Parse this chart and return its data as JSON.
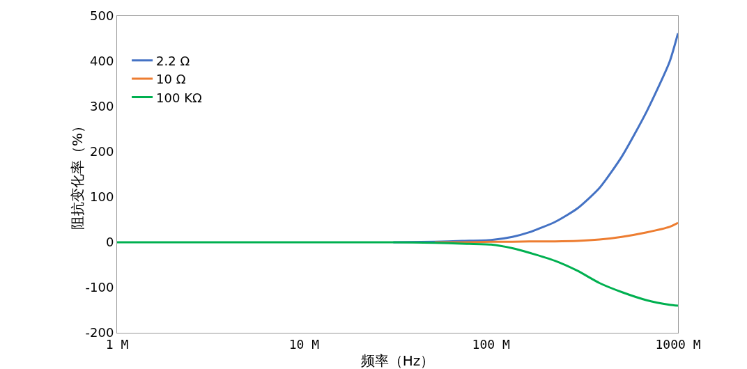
{
  "chart_data": {
    "type": "line",
    "xlabel": "频率（Hz）",
    "ylabel": "阻抗变化率（%）",
    "log": "x",
    "x": [
      1000000,
      10000000,
      30000000,
      50000000,
      70000000,
      100000000,
      130000000,
      160000000,
      220000000,
      290000000,
      380000000,
      500000000,
      680000000,
      900000000,
      1000000000
    ],
    "series": [
      {
        "name": "2.2 Ω",
        "color": "#4472c4",
        "values": [
          null,
          null,
          0,
          1,
          3,
          5,
          12,
          22,
          45,
          75,
          120,
          189,
          289,
          398,
          462
        ]
      },
      {
        "name": "10 Ω",
        "color": "#ed7d31",
        "values": [
          null,
          null,
          null,
          0,
          0,
          1,
          1,
          2,
          2,
          3,
          6,
          12,
          22,
          34,
          43
        ]
      },
      {
        "name": "100 KΩ",
        "color": "#00b050",
        "values": [
          0,
          0,
          0,
          -1,
          -3,
          -5,
          -13,
          -23,
          -41,
          -63,
          -90,
          -110,
          -128,
          -138,
          -140
        ]
      }
    ],
    "xlim": [
      1000000,
      1000000000
    ],
    "xticks": [
      {
        "value": 1000000,
        "label": "1 M"
      },
      {
        "value": 10000000,
        "label": "10 M"
      },
      {
        "value": 100000000,
        "label": "100 M"
      },
      {
        "value": 1000000000,
        "label": "1000 M"
      }
    ],
    "ylim": [
      -200,
      500
    ],
    "yticks": [
      -200,
      -100,
      0,
      100,
      200,
      300,
      400,
      500
    ],
    "grid": false,
    "legend": "top left",
    "marker": "none",
    "line_style": "solid"
  }
}
